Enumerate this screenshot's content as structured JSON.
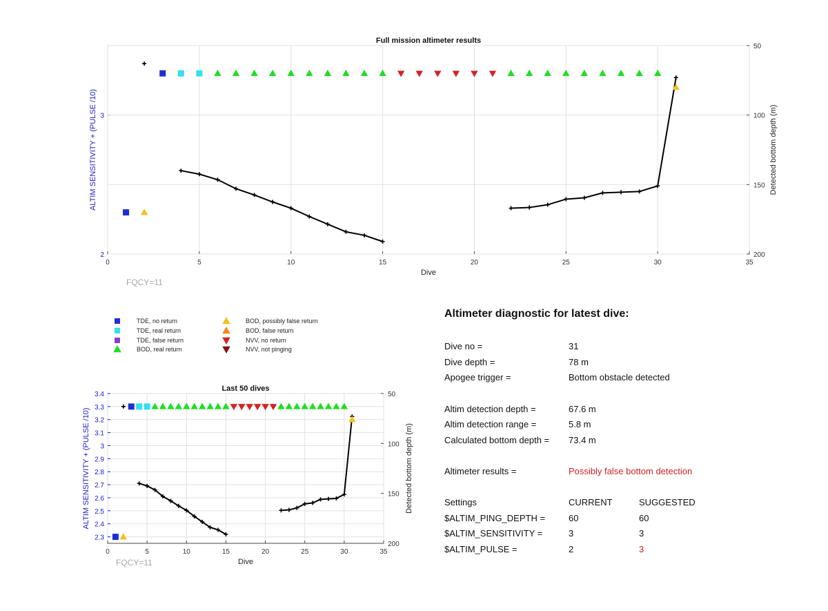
{
  "colors": {
    "tde_no_return": "#1f2fd6",
    "tde_real_return": "#33e0f0",
    "tde_false_return": "#8a3fd1",
    "bod_real_return": "#1ee01e",
    "bod_possibly_false": "#f6c11b",
    "bod_false_return": "#f08a1c",
    "nvv_no_return": "#d62222",
    "nvv_not_pinging": "#8b1010",
    "depth_line": "#000000",
    "left_axis": "#1c1cc8",
    "highlight_red": "#d42020"
  },
  "fqcy_label": "FQCY=11",
  "legend": {
    "items": [
      {
        "label": "TDE, no return",
        "marker": "square",
        "color_key": "tde_no_return"
      },
      {
        "label": "TDE, real return",
        "marker": "square",
        "color_key": "tde_real_return"
      },
      {
        "label": "TDE, false return",
        "marker": "square",
        "color_key": "tde_false_return"
      },
      {
        "label": "BOD, real return",
        "marker": "triangle-up",
        "color_key": "bod_real_return"
      },
      {
        "label": "BOD, possibly false return",
        "marker": "triangle-up",
        "color_key": "bod_possibly_false"
      },
      {
        "label": "BOD, false return",
        "marker": "triangle-up",
        "color_key": "bod_false_return"
      },
      {
        "label": "NVV, no return",
        "marker": "triangle-down",
        "color_key": "nvv_no_return"
      },
      {
        "label": "NVV, not pinging",
        "marker": "triangle-down",
        "color_key": "nvv_not_pinging"
      }
    ]
  },
  "diagnostic": {
    "title": "Altimeter diagnostic for latest dive:",
    "dive_no_label": "Dive no =",
    "dive_no": "31",
    "dive_depth_label": "Dive depth =",
    "dive_depth": "78 m",
    "apogee_label": "Apogee trigger =",
    "apogee": "Bottom obstacle detected",
    "altim_det_depth_label": "Altim detection depth =",
    "altim_det_depth": "67.6 m",
    "altim_det_range_label": "Altim detection range =",
    "altim_det_range": "5.8 m",
    "calc_bottom_label": "Calculated bottom depth =",
    "calc_bottom": "73.4 m",
    "results_label": "Altimeter results =",
    "results": "Possibly false bottom detection",
    "settings_header": "Settings",
    "current_header": "CURRENT",
    "suggested_header": "SUGGESTED",
    "settings": [
      {
        "name": "$ALTIM_PING_DEPTH =",
        "current": "60",
        "suggested": "60",
        "changed": false
      },
      {
        "name": "$ALTIM_SENSITIVITY =",
        "current": "3",
        "suggested": "3",
        "changed": false
      },
      {
        "name": "$ALTIM_PULSE =",
        "current": "2",
        "suggested": "3",
        "changed": true
      }
    ]
  },
  "chart_data": [
    {
      "type": "scatter",
      "title": "Full mission altimeter results",
      "xlabel": "Dive",
      "ylabel": "ALTIM SENSITIVITY + (PULSE /10)",
      "y2label": "Detected bottom depth (m)",
      "xlim": [
        0,
        35
      ],
      "ylim": [
        2,
        3.5
      ],
      "y2lim": [
        200,
        50
      ],
      "y2_reversed": true,
      "xticks": [
        "0",
        "5",
        "10",
        "15",
        "20",
        "25",
        "30",
        "35"
      ],
      "yticks": [
        "2",
        "3"
      ],
      "y2ticks": [
        "50",
        "100",
        "150",
        "200"
      ],
      "grid": true,
      "markers": [
        {
          "x": 1,
          "y": 2.3,
          "cat": "tde_no_return"
        },
        {
          "x": 2,
          "y": 2.3,
          "cat": "bod_possibly_false"
        },
        {
          "x": 3,
          "y": 3.3,
          "cat": "tde_no_return"
        },
        {
          "x": 4,
          "y": 3.3,
          "cat": "tde_real_return"
        },
        {
          "x": 5,
          "y": 3.3,
          "cat": "tde_real_return"
        },
        {
          "x": 6,
          "y": 3.3,
          "cat": "bod_real_return"
        },
        {
          "x": 7,
          "y": 3.3,
          "cat": "bod_real_return"
        },
        {
          "x": 8,
          "y": 3.3,
          "cat": "bod_real_return"
        },
        {
          "x": 9,
          "y": 3.3,
          "cat": "bod_real_return"
        },
        {
          "x": 10,
          "y": 3.3,
          "cat": "bod_real_return"
        },
        {
          "x": 11,
          "y": 3.3,
          "cat": "bod_real_return"
        },
        {
          "x": 12,
          "y": 3.3,
          "cat": "bod_real_return"
        },
        {
          "x": 13,
          "y": 3.3,
          "cat": "bod_real_return"
        },
        {
          "x": 14,
          "y": 3.3,
          "cat": "bod_real_return"
        },
        {
          "x": 15,
          "y": 3.3,
          "cat": "bod_real_return"
        },
        {
          "x": 16,
          "y": 3.3,
          "cat": "nvv_no_return"
        },
        {
          "x": 17,
          "y": 3.3,
          "cat": "nvv_no_return"
        },
        {
          "x": 18,
          "y": 3.3,
          "cat": "nvv_no_return"
        },
        {
          "x": 19,
          "y": 3.3,
          "cat": "nvv_no_return"
        },
        {
          "x": 20,
          "y": 3.3,
          "cat": "nvv_no_return"
        },
        {
          "x": 21,
          "y": 3.3,
          "cat": "nvv_no_return"
        },
        {
          "x": 22,
          "y": 3.3,
          "cat": "bod_real_return"
        },
        {
          "x": 23,
          "y": 3.3,
          "cat": "bod_real_return"
        },
        {
          "x": 24,
          "y": 3.3,
          "cat": "bod_real_return"
        },
        {
          "x": 25,
          "y": 3.3,
          "cat": "bod_real_return"
        },
        {
          "x": 26,
          "y": 3.3,
          "cat": "bod_real_return"
        },
        {
          "x": 27,
          "y": 3.3,
          "cat": "bod_real_return"
        },
        {
          "x": 28,
          "y": 3.3,
          "cat": "bod_real_return"
        },
        {
          "x": 29,
          "y": 3.3,
          "cat": "bod_real_return"
        },
        {
          "x": 30,
          "y": 3.3,
          "cat": "bod_real_return"
        },
        {
          "x": 31,
          "y": 3.2,
          "cat": "bod_possibly_false"
        }
      ],
      "depth_points": [
        {
          "x": 2,
          "y": 63
        }
      ],
      "depth_segments": [
        [
          {
            "x": 4,
            "y": 140
          },
          {
            "x": 5,
            "y": 142.5
          },
          {
            "x": 6,
            "y": 146.5
          },
          {
            "x": 7,
            "y": 153
          },
          {
            "x": 8,
            "y": 157.5
          },
          {
            "x": 9,
            "y": 162.5
          },
          {
            "x": 10,
            "y": 167
          },
          {
            "x": 11,
            "y": 173
          },
          {
            "x": 12,
            "y": 178.5
          },
          {
            "x": 13,
            "y": 184
          },
          {
            "x": 14,
            "y": 186.5
          },
          {
            "x": 15,
            "y": 191
          }
        ],
        [
          {
            "x": 22,
            "y": 167
          },
          {
            "x": 23,
            "y": 166.5
          },
          {
            "x": 24,
            "y": 164.5
          },
          {
            "x": 25,
            "y": 160.5
          },
          {
            "x": 26,
            "y": 159.5
          },
          {
            "x": 27,
            "y": 156
          },
          {
            "x": 28,
            "y": 155.5
          },
          {
            "x": 29,
            "y": 155
          },
          {
            "x": 30,
            "y": 151
          },
          {
            "x": 31,
            "y": 73
          }
        ]
      ]
    },
    {
      "type": "scatter",
      "title": "Last 50 dives",
      "xlabel": "Dive",
      "ylabel": "ALTIM SENSITIVITY + (PULSE /10)",
      "y2label": "Detected bottom depth (m)",
      "xlim": [
        0,
        35
      ],
      "ylim": [
        2.25,
        3.4
      ],
      "y2lim": [
        200,
        50
      ],
      "y2_reversed": true,
      "xticks": [
        "0",
        "5",
        "10",
        "15",
        "20",
        "25",
        "30",
        "35"
      ],
      "yticks": [
        "2.3",
        "2.4",
        "2.5",
        "2.6",
        "2.7",
        "2.8",
        "2.9",
        "3",
        "3.1",
        "3.2",
        "3.3",
        "3.4"
      ],
      "y2ticks": [
        "50",
        "100",
        "150",
        "200"
      ],
      "grid": true,
      "markers": [
        {
          "x": 1,
          "y": 2.3,
          "cat": "tde_no_return"
        },
        {
          "x": 2,
          "y": 2.3,
          "cat": "bod_possibly_false"
        },
        {
          "x": 3,
          "y": 3.3,
          "cat": "tde_no_return"
        },
        {
          "x": 4,
          "y": 3.3,
          "cat": "tde_real_return"
        },
        {
          "x": 5,
          "y": 3.3,
          "cat": "tde_real_return"
        },
        {
          "x": 6,
          "y": 3.3,
          "cat": "bod_real_return"
        },
        {
          "x": 7,
          "y": 3.3,
          "cat": "bod_real_return"
        },
        {
          "x": 8,
          "y": 3.3,
          "cat": "bod_real_return"
        },
        {
          "x": 9,
          "y": 3.3,
          "cat": "bod_real_return"
        },
        {
          "x": 10,
          "y": 3.3,
          "cat": "bod_real_return"
        },
        {
          "x": 11,
          "y": 3.3,
          "cat": "bod_real_return"
        },
        {
          "x": 12,
          "y": 3.3,
          "cat": "bod_real_return"
        },
        {
          "x": 13,
          "y": 3.3,
          "cat": "bod_real_return"
        },
        {
          "x": 14,
          "y": 3.3,
          "cat": "bod_real_return"
        },
        {
          "x": 15,
          "y": 3.3,
          "cat": "bod_real_return"
        },
        {
          "x": 16,
          "y": 3.3,
          "cat": "nvv_no_return"
        },
        {
          "x": 17,
          "y": 3.3,
          "cat": "nvv_no_return"
        },
        {
          "x": 18,
          "y": 3.3,
          "cat": "nvv_no_return"
        },
        {
          "x": 19,
          "y": 3.3,
          "cat": "nvv_no_return"
        },
        {
          "x": 20,
          "y": 3.3,
          "cat": "nvv_no_return"
        },
        {
          "x": 21,
          "y": 3.3,
          "cat": "nvv_no_return"
        },
        {
          "x": 22,
          "y": 3.3,
          "cat": "bod_real_return"
        },
        {
          "x": 23,
          "y": 3.3,
          "cat": "bod_real_return"
        },
        {
          "x": 24,
          "y": 3.3,
          "cat": "bod_real_return"
        },
        {
          "x": 25,
          "y": 3.3,
          "cat": "bod_real_return"
        },
        {
          "x": 26,
          "y": 3.3,
          "cat": "bod_real_return"
        },
        {
          "x": 27,
          "y": 3.3,
          "cat": "bod_real_return"
        },
        {
          "x": 28,
          "y": 3.3,
          "cat": "bod_real_return"
        },
        {
          "x": 29,
          "y": 3.3,
          "cat": "bod_real_return"
        },
        {
          "x": 30,
          "y": 3.3,
          "cat": "bod_real_return"
        },
        {
          "x": 31,
          "y": 3.2,
          "cat": "bod_possibly_false"
        }
      ],
      "depth_points": [
        {
          "x": 2,
          "y": 63
        }
      ],
      "depth_segments": [
        [
          {
            "x": 4,
            "y": 140
          },
          {
            "x": 5,
            "y": 142.5
          },
          {
            "x": 6,
            "y": 146.5
          },
          {
            "x": 7,
            "y": 153
          },
          {
            "x": 8,
            "y": 157.5
          },
          {
            "x": 9,
            "y": 162.5
          },
          {
            "x": 10,
            "y": 167
          },
          {
            "x": 11,
            "y": 173
          },
          {
            "x": 12,
            "y": 178.5
          },
          {
            "x": 13,
            "y": 184
          },
          {
            "x": 14,
            "y": 186.5
          },
          {
            "x": 15,
            "y": 191
          }
        ],
        [
          {
            "x": 22,
            "y": 167
          },
          {
            "x": 23,
            "y": 166.5
          },
          {
            "x": 24,
            "y": 164.5
          },
          {
            "x": 25,
            "y": 160.5
          },
          {
            "x": 26,
            "y": 159.5
          },
          {
            "x": 27,
            "y": 156
          },
          {
            "x": 28,
            "y": 155.5
          },
          {
            "x": 29,
            "y": 155
          },
          {
            "x": 30,
            "y": 151
          },
          {
            "x": 31,
            "y": 73
          }
        ]
      ]
    }
  ]
}
